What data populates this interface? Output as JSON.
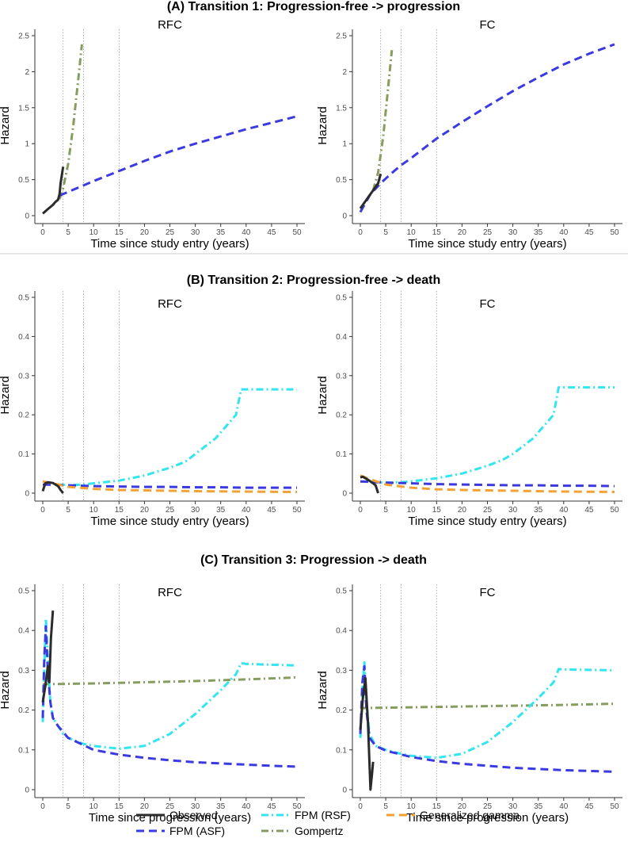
{
  "rows": [
    {
      "title": "(A) Transition 1: Progression-free -> progression"
    },
    {
      "title": "(B) Transition 2: Progression-free -> death"
    },
    {
      "title": "(C) Transition 3: Progression -> death"
    }
  ],
  "legend": [
    {
      "key": "observed",
      "label": "Observed",
      "color": "#2b2b2b",
      "dash": "solid"
    },
    {
      "key": "fpm_asf",
      "label": "FPM (ASF)",
      "color": "#3a3ae0",
      "dash": "dashed"
    },
    {
      "key": "fpm_rsf",
      "label": "FPM (RSF)",
      "color": "#33e5ee",
      "dash": "dotdash"
    },
    {
      "key": "gompertz",
      "label": "Gompertz",
      "color": "#869d5f",
      "dash": "dotdash"
    },
    {
      "key": "gengamma",
      "label": "Generalized gamma",
      "color": "#f5a033",
      "dash": "dashed"
    }
  ],
  "chart_data": [
    {
      "type": "line",
      "row": 0,
      "col": 0,
      "title": "RFC",
      "xlabel": "Time since study entry  (years)",
      "ylabel": "Hazard",
      "xlim": [
        0,
        50
      ],
      "ylim": [
        0,
        2.5
      ],
      "xticks": [
        0,
        5,
        10,
        15,
        20,
        25,
        30,
        35,
        40,
        45,
        50
      ],
      "yticks": [
        0,
        0.5,
        1,
        1.5,
        2,
        2.5
      ],
      "ytick_labels": [
        "0",
        "0.5",
        "1",
        "1.5",
        "2",
        "2.5"
      ],
      "vlines": [
        4,
        8,
        15
      ],
      "series": [
        {
          "key": "gompertz",
          "x": [
            3.3,
            4,
            5,
            6,
            7,
            7.7
          ],
          "y": [
            0.23,
            0.38,
            0.72,
            1.25,
            1.9,
            2.38
          ]
        },
        {
          "key": "fpm_asf",
          "x": [
            3.3,
            5,
            8,
            10,
            15,
            20,
            25,
            30,
            35,
            40,
            45,
            50
          ],
          "y": [
            0.28,
            0.33,
            0.42,
            0.48,
            0.62,
            0.76,
            0.89,
            1.0,
            1.1,
            1.2,
            1.29,
            1.38
          ]
        },
        {
          "key": "observed",
          "x": [
            0,
            0.5,
            1,
            1.5,
            2,
            2.5,
            3,
            3.3,
            3.5,
            4
          ],
          "y": [
            0.03,
            0.06,
            0.09,
            0.12,
            0.15,
            0.19,
            0.22,
            0.3,
            0.45,
            0.68
          ]
        }
      ]
    },
    {
      "type": "line",
      "row": 0,
      "col": 1,
      "title": "FC",
      "xlabel": "Time since study entry  (years)",
      "ylabel": "Hazard",
      "xlim": [
        0,
        50
      ],
      "ylim": [
        0,
        2.5
      ],
      "xticks": [
        0,
        5,
        10,
        15,
        20,
        25,
        30,
        35,
        40,
        45,
        50
      ],
      "yticks": [
        0,
        0.5,
        1,
        1.5,
        2,
        2.5
      ],
      "ytick_labels": [
        "0",
        "0.5",
        "1",
        "1.5",
        "2",
        "2.5"
      ],
      "vlines": [
        4,
        8,
        15
      ],
      "series": [
        {
          "key": "fpm_asf",
          "x": [
            0,
            2,
            4,
            6,
            8,
            10,
            15,
            20,
            25,
            30,
            35,
            40,
            45,
            50
          ],
          "y": [
            0.05,
            0.3,
            0.45,
            0.58,
            0.7,
            0.8,
            1.07,
            1.3,
            1.52,
            1.73,
            1.92,
            2.1,
            2.25,
            2.38
          ]
        },
        {
          "key": "gompertz",
          "x": [
            2.5,
            3.5,
            4.5,
            5.5,
            6.2
          ],
          "y": [
            0.35,
            0.6,
            1.1,
            1.8,
            2.3
          ]
        },
        {
          "key": "observed",
          "x": [
            0,
            0.5,
            1,
            1.5,
            2,
            2.5,
            3,
            3.5,
            4
          ],
          "y": [
            0.1,
            0.15,
            0.2,
            0.25,
            0.3,
            0.35,
            0.4,
            0.45,
            0.58
          ]
        }
      ]
    },
    {
      "type": "line",
      "row": 1,
      "col": 0,
      "title": "RFC",
      "xlabel": "Time since study entry  (years)",
      "ylabel": "Hazard",
      "xlim": [
        0,
        50
      ],
      "ylim": [
        0,
        0.5
      ],
      "xticks": [
        0,
        5,
        10,
        15,
        20,
        25,
        30,
        35,
        40,
        45,
        50
      ],
      "yticks": [
        0,
        0.1,
        0.2,
        0.3,
        0.4,
        0.5
      ],
      "ytick_labels": [
        "0",
        "0.1",
        "0.2",
        "0.3",
        "0.4",
        "0.5"
      ],
      "vlines": [
        4,
        8,
        15
      ],
      "series": [
        {
          "key": "fpm_rsf",
          "x": [
            3,
            5,
            8,
            10,
            15,
            20,
            25,
            28,
            30,
            32,
            34,
            36,
            38,
            39,
            40,
            45,
            50
          ],
          "y": [
            0.022,
            0.02,
            0.022,
            0.025,
            0.032,
            0.045,
            0.065,
            0.08,
            0.1,
            0.12,
            0.14,
            0.17,
            0.2,
            0.265,
            0.265,
            0.265,
            0.265
          ]
        },
        {
          "key": "fpm_asf",
          "x": [
            0,
            5,
            10,
            15,
            20,
            25,
            30,
            35,
            40,
            45,
            50
          ],
          "y": [
            0.022,
            0.02,
            0.018,
            0.017,
            0.016,
            0.016,
            0.015,
            0.015,
            0.014,
            0.014,
            0.014
          ]
        },
        {
          "key": "gengamma",
          "x": [
            0,
            2,
            5,
            10,
            15,
            20,
            25,
            30,
            40,
            50
          ],
          "y": [
            0.03,
            0.025,
            0.016,
            0.011,
            0.008,
            0.007,
            0.006,
            0.005,
            0.004,
            0.003
          ]
        },
        {
          "key": "observed",
          "x": [
            0,
            0.5,
            1,
            2,
            3,
            3.5,
            4
          ],
          "y": [
            0.005,
            0.025,
            0.028,
            0.026,
            0.018,
            0.008,
            0.0
          ]
        }
      ]
    },
    {
      "type": "line",
      "row": 1,
      "col": 1,
      "title": "FC",
      "xlabel": "Time since study entry  (years)",
      "ylabel": "Hazard",
      "xlim": [
        0,
        50
      ],
      "ylim": [
        0,
        0.5
      ],
      "xticks": [
        0,
        5,
        10,
        15,
        20,
        25,
        30,
        35,
        40,
        45,
        50
      ],
      "yticks": [
        0,
        0.1,
        0.2,
        0.3,
        0.4,
        0.5
      ],
      "ytick_labels": [
        "0",
        "0.1",
        "0.2",
        "0.3",
        "0.4",
        "0.5"
      ],
      "vlines": [
        4,
        8,
        15
      ],
      "series": [
        {
          "key": "fpm_rsf",
          "x": [
            2,
            5,
            8,
            10,
            15,
            20,
            25,
            28,
            30,
            32,
            34,
            36,
            38,
            39,
            40,
            45,
            50
          ],
          "y": [
            0.028,
            0.027,
            0.028,
            0.03,
            0.038,
            0.05,
            0.07,
            0.085,
            0.1,
            0.12,
            0.14,
            0.17,
            0.2,
            0.27,
            0.27,
            0.27,
            0.27
          ]
        },
        {
          "key": "fpm_asf",
          "x": [
            0,
            5,
            10,
            15,
            20,
            25,
            30,
            35,
            40,
            45,
            50
          ],
          "y": [
            0.03,
            0.027,
            0.025,
            0.023,
            0.022,
            0.021,
            0.02,
            0.02,
            0.019,
            0.019,
            0.018
          ]
        },
        {
          "key": "gengamma",
          "x": [
            0,
            2,
            5,
            10,
            15,
            20,
            25,
            30,
            40,
            50
          ],
          "y": [
            0.045,
            0.035,
            0.022,
            0.014,
            0.01,
            0.008,
            0.007,
            0.006,
            0.004,
            0.003
          ]
        },
        {
          "key": "observed",
          "x": [
            0,
            0.5,
            1,
            2,
            3,
            3.5
          ],
          "y": [
            0.04,
            0.042,
            0.038,
            0.03,
            0.02,
            0.0
          ]
        }
      ]
    },
    {
      "type": "line",
      "row": 2,
      "col": 0,
      "title": "RFC",
      "xlabel": "Time since progression (years)",
      "ylabel": "Hazard",
      "xlim": [
        0,
        50
      ],
      "ylim": [
        0,
        0.5
      ],
      "xticks": [
        0,
        5,
        10,
        15,
        20,
        25,
        30,
        35,
        40,
        45,
        50
      ],
      "yticks": [
        0,
        0.1,
        0.2,
        0.3,
        0.4,
        0.5
      ],
      "ytick_labels": [
        "0",
        "0.1",
        "0.2",
        "0.3",
        "0.4",
        "0.5"
      ],
      "vlines": [
        4,
        8,
        15
      ],
      "series": [
        {
          "key": "gompertz",
          "x": [
            0,
            10,
            20,
            30,
            40,
            50
          ],
          "y": [
            0.265,
            0.267,
            0.27,
            0.273,
            0.277,
            0.282
          ]
        },
        {
          "key": "fpm_rsf",
          "x": [
            0,
            0.3,
            0.6,
            1,
            1.5,
            2,
            3,
            4,
            5,
            8,
            10,
            15,
            20,
            25,
            30,
            35,
            38,
            39,
            40,
            45,
            50
          ],
          "y": [
            0.17,
            0.3,
            0.43,
            0.33,
            0.22,
            0.18,
            0.16,
            0.14,
            0.13,
            0.115,
            0.11,
            0.103,
            0.11,
            0.14,
            0.19,
            0.25,
            0.29,
            0.318,
            0.316,
            0.314,
            0.312
          ]
        },
        {
          "key": "fpm_asf",
          "x": [
            0,
            0.3,
            0.6,
            1,
            1.5,
            2,
            3,
            5,
            10,
            15,
            20,
            25,
            30,
            35,
            40,
            45,
            50
          ],
          "y": [
            0.18,
            0.33,
            0.41,
            0.3,
            0.22,
            0.18,
            0.16,
            0.13,
            0.1,
            0.088,
            0.08,
            0.074,
            0.069,
            0.066,
            0.063,
            0.06,
            0.058
          ]
        },
        {
          "key": "observed",
          "x": [
            0,
            0.5,
            1,
            1.3,
            1.6,
            2
          ],
          "y": [
            0.22,
            0.26,
            0.31,
            0.27,
            0.38,
            0.45
          ]
        }
      ]
    },
    {
      "type": "line",
      "row": 2,
      "col": 1,
      "title": "FC",
      "xlabel": "Time since progression (years)",
      "ylabel": "Hazard",
      "xlim": [
        0,
        50
      ],
      "ylim": [
        0,
        0.5
      ],
      "xticks": [
        0,
        5,
        10,
        15,
        20,
        25,
        30,
        35,
        40,
        45,
        50
      ],
      "yticks": [
        0,
        0.1,
        0.2,
        0.3,
        0.4,
        0.5
      ],
      "ytick_labels": [
        "0",
        "0.1",
        "0.2",
        "0.3",
        "0.4",
        "0.5"
      ],
      "vlines": [
        4,
        8,
        15
      ],
      "series": [
        {
          "key": "gompertz",
          "x": [
            0,
            10,
            20,
            30,
            40,
            50
          ],
          "y": [
            0.205,
            0.207,
            0.209,
            0.211,
            0.213,
            0.216
          ]
        },
        {
          "key": "fpm_rsf",
          "x": [
            0,
            0.4,
            0.8,
            1.2,
            1.8,
            3,
            5,
            8,
            10,
            15,
            20,
            25,
            30,
            35,
            38,
            39,
            40,
            45,
            50
          ],
          "y": [
            0.13,
            0.25,
            0.32,
            0.22,
            0.14,
            0.11,
            0.1,
            0.09,
            0.085,
            0.08,
            0.09,
            0.12,
            0.17,
            0.23,
            0.27,
            0.303,
            0.302,
            0.301,
            0.3
          ]
        },
        {
          "key": "fpm_asf",
          "x": [
            0,
            0.4,
            0.8,
            1.2,
            1.8,
            3,
            5,
            10,
            15,
            20,
            25,
            30,
            35,
            40,
            45,
            50
          ],
          "y": [
            0.14,
            0.27,
            0.31,
            0.2,
            0.13,
            0.11,
            0.098,
            0.082,
            0.072,
            0.065,
            0.06,
            0.055,
            0.052,
            0.049,
            0.047,
            0.045
          ]
        },
        {
          "key": "observed",
          "x": [
            0,
            0.5,
            1,
            1.5,
            2,
            2.3,
            2.5
          ],
          "y": [
            0.15,
            0.23,
            0.28,
            0.17,
            0.0,
            0.04,
            0.07
          ]
        }
      ]
    }
  ]
}
